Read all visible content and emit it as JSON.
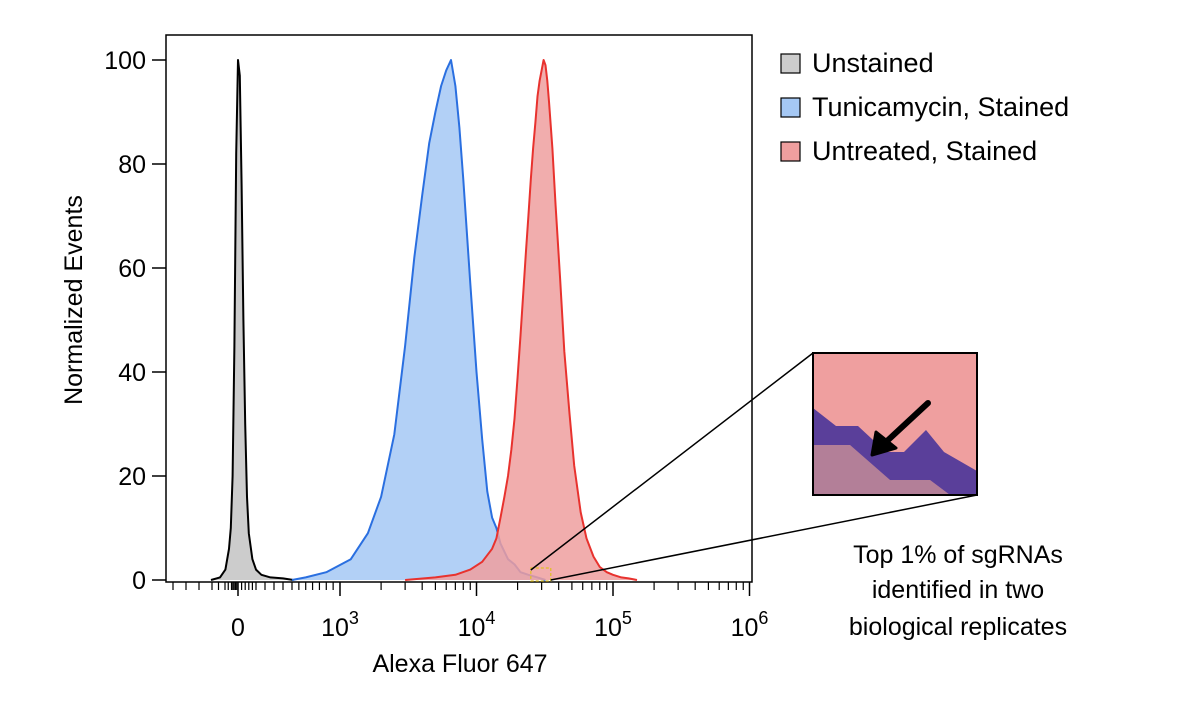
{
  "chart_data": {
    "type": "area",
    "xlabel": "Alexa Fluor 647",
    "ylabel": "Normalized Events",
    "x_scale": "biexponential",
    "ylim": [
      0,
      100
    ],
    "grid": false,
    "legend_position": "top-right, outside plot",
    "y_ticks": [
      {
        "value": 0,
        "label": "0"
      },
      {
        "value": 20,
        "label": "20"
      },
      {
        "value": 40,
        "label": "40"
      },
      {
        "value": 60,
        "label": "60"
      },
      {
        "value": 80,
        "label": "80"
      },
      {
        "value": 100,
        "label": "100"
      }
    ],
    "x_ticks": [
      {
        "value": 0,
        "base": "0",
        "exp": ""
      },
      {
        "value": 1000,
        "base": "10",
        "exp": "3"
      },
      {
        "value": 10000,
        "base": "10",
        "exp": "4"
      },
      {
        "value": 100000,
        "base": "10",
        "exp": "5"
      },
      {
        "value": 1000000,
        "base": "10",
        "exp": "6"
      }
    ],
    "series": [
      {
        "name": "Unstained",
        "fill": "#cccccc",
        "stroke": "#000000",
        "x": [
          -150,
          -100,
          -70,
          -50,
          -40,
          -30,
          -20,
          -10,
          0,
          10,
          20,
          30,
          40,
          50,
          60,
          80,
          100,
          130,
          180,
          250,
          320
        ],
        "y": [
          0,
          0.5,
          2,
          6,
          10,
          20,
          45,
          82,
          100,
          97,
          76,
          50,
          30,
          16,
          9,
          4,
          2,
          1,
          0.5,
          0.3,
          0
        ]
      },
      {
        "name": "Tunicamycin, Stained",
        "fill": "#a5c8f4",
        "stroke": "#2a6fe0",
        "x": [
          300,
          500,
          800,
          1200,
          1600,
          2000,
          2500,
          3000,
          3500,
          4000,
          4500,
          5000,
          5500,
          6000,
          6500,
          7000,
          7500,
          8000,
          9000,
          10000,
          11000,
          12000,
          13000,
          14000,
          15000,
          17000,
          19000,
          21000,
          24000,
          28000,
          32000
        ],
        "y": [
          0,
          0.5,
          1.5,
          4,
          9,
          16,
          28,
          45,
          62,
          74,
          84,
          90,
          95,
          98,
          100,
          95,
          87,
          77,
          57,
          40,
          27,
          17,
          12,
          10,
          7,
          4,
          3,
          1.5,
          1,
          0.5,
          0
        ]
      },
      {
        "name": "Untreated, Stained",
        "fill": "#ef9f9f",
        "stroke": "#e8322e",
        "x": [
          3000,
          5000,
          7000,
          9000,
          11000,
          13000,
          14000,
          15000,
          16000,
          17000,
          18000,
          19000,
          20000,
          21000,
          22000,
          23000,
          24000,
          25000,
          26000,
          27000,
          28000,
          29000,
          30000,
          31000,
          32000,
          33000,
          34000,
          36000,
          38000,
          41000,
          44000,
          48000,
          52000,
          58000,
          64000,
          72000,
          80000,
          90000,
          100000,
          115000,
          130000,
          150000
        ],
        "y": [
          0,
          0.5,
          1,
          2,
          3.5,
          6,
          8,
          12,
          16,
          20,
          25,
          31,
          39,
          47,
          55,
          63,
          70,
          77,
          83,
          88,
          93,
          96,
          98,
          100,
          99,
          96,
          92,
          83,
          72,
          58,
          44,
          32,
          22,
          13,
          8,
          4.5,
          2.5,
          1.5,
          1,
          0.5,
          0.3,
          0
        ]
      }
    ],
    "annotation": {
      "highlight_x": [
        25000,
        35000
      ],
      "lines": [
        "Top 1% of sgRNAs",
        "identified in two",
        "biological replicates"
      ],
      "inset": {
        "top_color": "#ef9f9f",
        "band_color": "#5a3f9a",
        "bottom_color": "#b37f98",
        "arrow": "points down-left"
      }
    }
  }
}
